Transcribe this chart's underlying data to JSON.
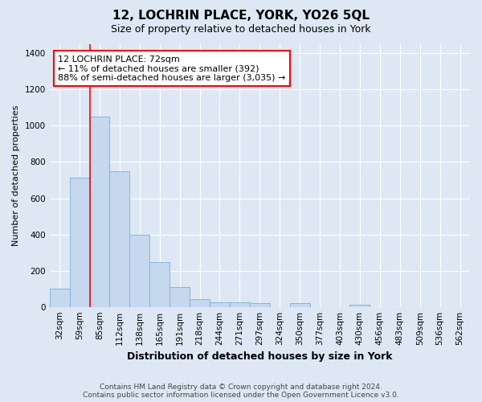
{
  "title": "12, LOCHRIN PLACE, YORK, YO26 5QL",
  "subtitle": "Size of property relative to detached houses in York",
  "xlabel": "Distribution of detached houses by size in York",
  "ylabel": "Number of detached properties",
  "categories": [
    "32sqm",
    "59sqm",
    "85sqm",
    "112sqm",
    "138sqm",
    "165sqm",
    "191sqm",
    "218sqm",
    "244sqm",
    "271sqm",
    "297sqm",
    "324sqm",
    "350sqm",
    "377sqm",
    "403sqm",
    "430sqm",
    "456sqm",
    "483sqm",
    "509sqm",
    "536sqm",
    "562sqm"
  ],
  "values": [
    100,
    715,
    1050,
    750,
    400,
    245,
    110,
    45,
    25,
    25,
    20,
    0,
    20,
    0,
    0,
    10,
    0,
    0,
    0,
    0,
    0
  ],
  "bar_color": "#c5d8ee",
  "bar_edge_color": "#7aaed4",
  "property_line_x": 1.5,
  "annotation_text": "12 LOCHRIN PLACE: 72sqm\n← 11% of detached houses are smaller (392)\n88% of semi-detached houses are larger (3,035) →",
  "footer_line1": "Contains HM Land Registry data © Crown copyright and database right 2024.",
  "footer_line2": "Contains public sector information licensed under the Open Government Licence v3.0.",
  "ylim": [
    0,
    1450
  ],
  "yticks": [
    0,
    200,
    400,
    600,
    800,
    1000,
    1200,
    1400
  ],
  "bg_color": "#dde8f4",
  "grid_color": "#ffffff",
  "title_fontsize": 11,
  "subtitle_fontsize": 9,
  "ylabel_fontsize": 8,
  "xlabel_fontsize": 9,
  "tick_fontsize": 7.5,
  "footer_fontsize": 6.5
}
